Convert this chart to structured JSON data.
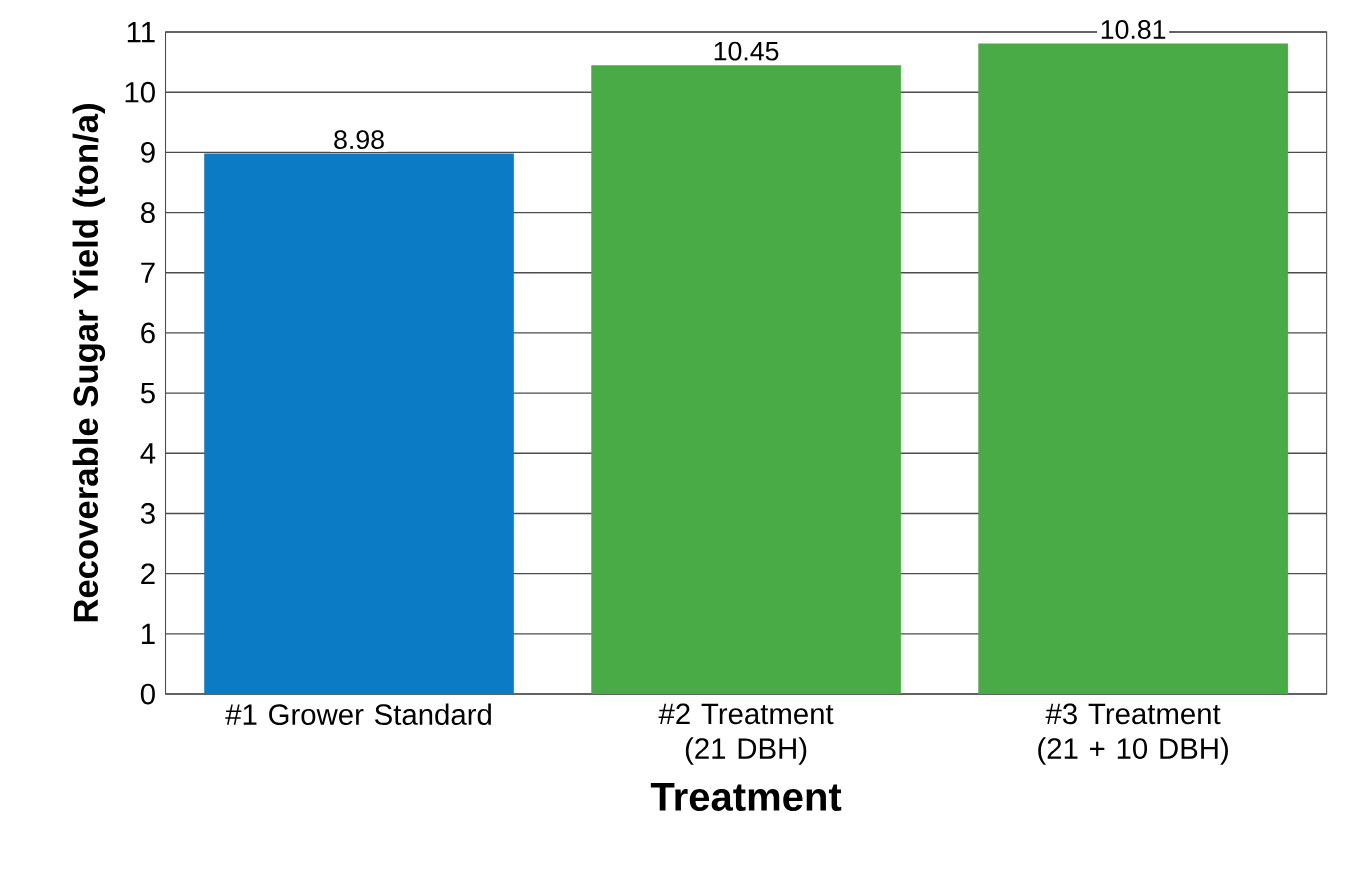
{
  "chart_data": {
    "type": "bar",
    "xlabel": "Treatment",
    "ylabel": "Recoverable Sugar Yield (ton/a)",
    "categories": [
      "#1 Grower Standard",
      "#2 Treatment (21 DBH)",
      "#3 Treatment (21 + 10 DBH)"
    ],
    "values": [
      8.98,
      10.45,
      10.81
    ],
    "colors": [
      "#0a7bc4",
      "#49ab45",
      "#49ab45"
    ],
    "ylim": [
      0,
      11
    ],
    "yticks": [
      0,
      1,
      2,
      3,
      4,
      5,
      6,
      7,
      8,
      9,
      10,
      11
    ],
    "grid": "y",
    "data_labels": true
  }
}
